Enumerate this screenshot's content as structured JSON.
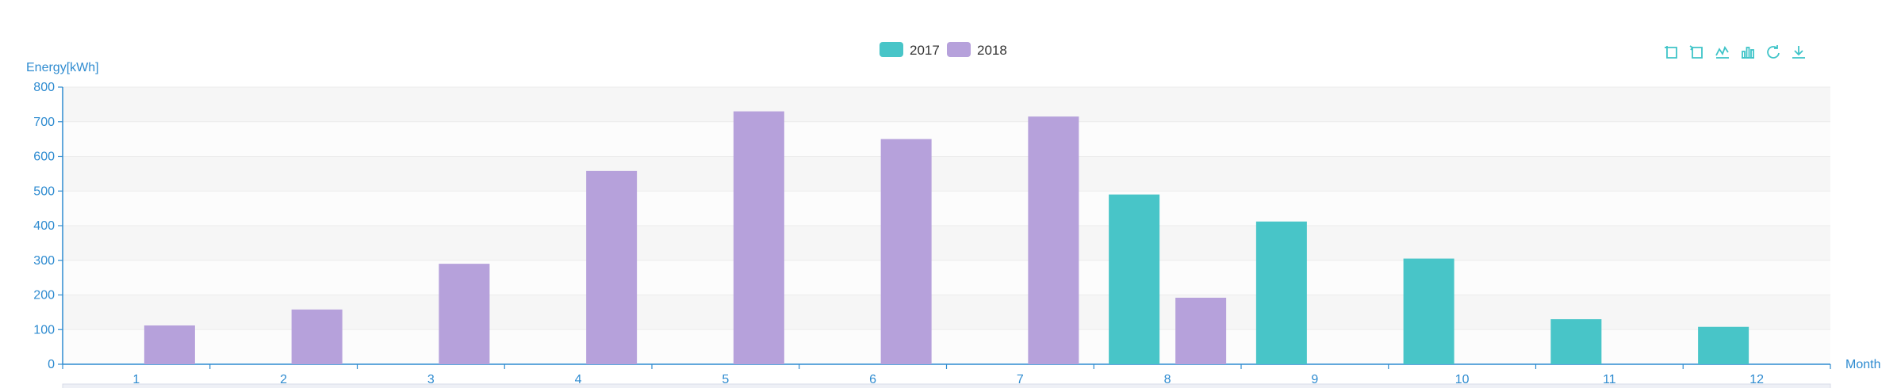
{
  "chart_data": {
    "type": "bar",
    "categories": [
      "1",
      "2",
      "3",
      "4",
      "5",
      "6",
      "7",
      "8",
      "9",
      "10",
      "11",
      "12"
    ],
    "series": [
      {
        "name": "2017",
        "color": "#48c5c8",
        "values": [
          0,
          0,
          0,
          0,
          0,
          0,
          0,
          490,
          412,
          305,
          130,
          108
        ]
      },
      {
        "name": "2018",
        "color": "#b6a1db",
        "values": [
          112,
          158,
          290,
          558,
          730,
          650,
          715,
          192,
          0,
          0,
          0,
          0
        ]
      }
    ],
    "ylabel": "Energy[kWh]",
    "xlabel": "Month",
    "ylim": [
      0,
      800
    ],
    "yticks": [
      0,
      100,
      200,
      300,
      400,
      500,
      600,
      700,
      800
    ],
    "grid": true,
    "legend_position": "top-center"
  },
  "toolbox": {
    "icons": [
      "zoom-icon",
      "zoom-reset-icon",
      "line-chart-icon",
      "bar-chart-icon",
      "restore-icon",
      "download-icon"
    ]
  }
}
